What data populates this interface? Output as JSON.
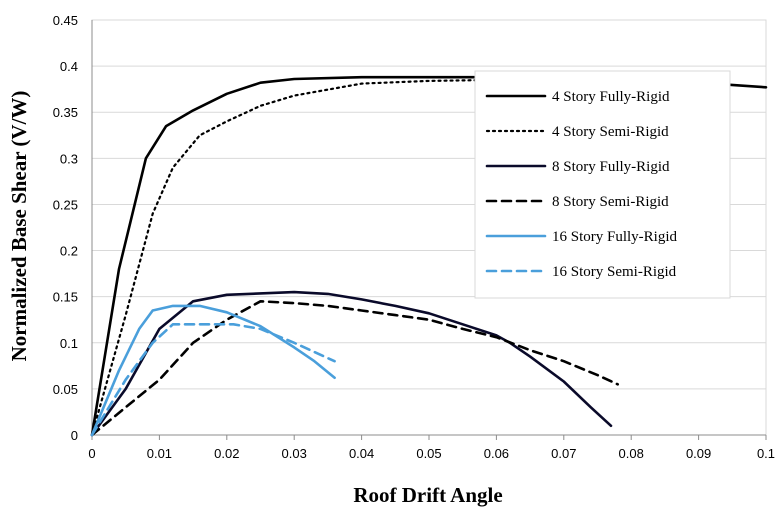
{
  "chart_data": {
    "type": "line",
    "title": "",
    "xlabel": "Roof Drift Angle",
    "ylabel": "Normalized Base Shear (V/W)",
    "xlim": [
      0,
      0.1
    ],
    "ylim": [
      0,
      0.45
    ],
    "x_ticks": [
      "0",
      "0.01",
      "0.02",
      "0.03",
      "0.04",
      "0.05",
      "0.06",
      "0.07",
      "0.08",
      "0.09",
      "0.1"
    ],
    "y_ticks": [
      "0",
      "0.05",
      "0.1",
      "0.15",
      "0.2",
      "0.25",
      "0.3",
      "0.35",
      "0.4",
      "0.45"
    ],
    "grid": "horizontal",
    "legend_position": "right",
    "series": [
      {
        "name": "4 Story Fully-Rigid",
        "color": "#000000",
        "style": "solid",
        "points": [
          [
            0,
            0
          ],
          [
            0.004,
            0.18
          ],
          [
            0.008,
            0.3
          ],
          [
            0.011,
            0.335
          ],
          [
            0.015,
            0.352
          ],
          [
            0.02,
            0.37
          ],
          [
            0.025,
            0.382
          ],
          [
            0.03,
            0.386
          ],
          [
            0.04,
            0.388
          ],
          [
            0.05,
            0.388
          ],
          [
            0.06,
            0.388
          ],
          [
            0.07,
            0.388
          ],
          [
            0.08,
            0.386
          ],
          [
            0.09,
            0.382
          ],
          [
            0.1,
            0.377
          ]
        ]
      },
      {
        "name": "4 Story Semi-Rigid",
        "color": "#000000",
        "style": "dotted",
        "points": [
          [
            0,
            0
          ],
          [
            0.005,
            0.13
          ],
          [
            0.009,
            0.24
          ],
          [
            0.012,
            0.29
          ],
          [
            0.016,
            0.325
          ],
          [
            0.02,
            0.34
          ],
          [
            0.025,
            0.357
          ],
          [
            0.03,
            0.368
          ],
          [
            0.04,
            0.381
          ],
          [
            0.05,
            0.384
          ],
          [
            0.06,
            0.385
          ],
          [
            0.07,
            0.385
          ],
          [
            0.08,
            0.385
          ],
          [
            0.085,
            0.384
          ]
        ]
      },
      {
        "name": "8 Story Fully-Rigid",
        "color": "#0a0a2a",
        "style": "solid",
        "points": [
          [
            0,
            0
          ],
          [
            0.005,
            0.05
          ],
          [
            0.01,
            0.115
          ],
          [
            0.015,
            0.145
          ],
          [
            0.02,
            0.152
          ],
          [
            0.03,
            0.155
          ],
          [
            0.035,
            0.153
          ],
          [
            0.04,
            0.147
          ],
          [
            0.045,
            0.14
          ],
          [
            0.05,
            0.132
          ],
          [
            0.055,
            0.12
          ],
          [
            0.06,
            0.108
          ],
          [
            0.062,
            0.1
          ],
          [
            0.065,
            0.085
          ],
          [
            0.07,
            0.058
          ],
          [
            0.074,
            0.03
          ],
          [
            0.077,
            0.01
          ]
        ]
      },
      {
        "name": "8 Story Semi-Rigid",
        "color": "#000000",
        "style": "dashed",
        "points": [
          [
            0,
            0
          ],
          [
            0.005,
            0.03
          ],
          [
            0.01,
            0.06
          ],
          [
            0.015,
            0.1
          ],
          [
            0.02,
            0.125
          ],
          [
            0.025,
            0.145
          ],
          [
            0.03,
            0.143
          ],
          [
            0.035,
            0.14
          ],
          [
            0.04,
            0.135
          ],
          [
            0.045,
            0.13
          ],
          [
            0.05,
            0.125
          ],
          [
            0.055,
            0.115
          ],
          [
            0.06,
            0.106
          ],
          [
            0.065,
            0.092
          ],
          [
            0.07,
            0.08
          ],
          [
            0.075,
            0.065
          ],
          [
            0.078,
            0.055
          ]
        ]
      },
      {
        "name": "16 Story Fully-Rigid",
        "color": "#4a9fdb",
        "style": "solid",
        "points": [
          [
            0,
            0
          ],
          [
            0.004,
            0.07
          ],
          [
            0.007,
            0.115
          ],
          [
            0.009,
            0.135
          ],
          [
            0.012,
            0.14
          ],
          [
            0.016,
            0.14
          ],
          [
            0.02,
            0.133
          ],
          [
            0.025,
            0.118
          ],
          [
            0.03,
            0.095
          ],
          [
            0.033,
            0.08
          ],
          [
            0.036,
            0.062
          ]
        ]
      },
      {
        "name": "16 Story Semi-Rigid",
        "color": "#4a9fdb",
        "style": "dashed",
        "points": [
          [
            0,
            0
          ],
          [
            0.005,
            0.06
          ],
          [
            0.009,
            0.1
          ],
          [
            0.012,
            0.12
          ],
          [
            0.016,
            0.12
          ],
          [
            0.021,
            0.12
          ],
          [
            0.025,
            0.115
          ],
          [
            0.03,
            0.1
          ],
          [
            0.033,
            0.09
          ],
          [
            0.036,
            0.08
          ]
        ]
      }
    ]
  }
}
